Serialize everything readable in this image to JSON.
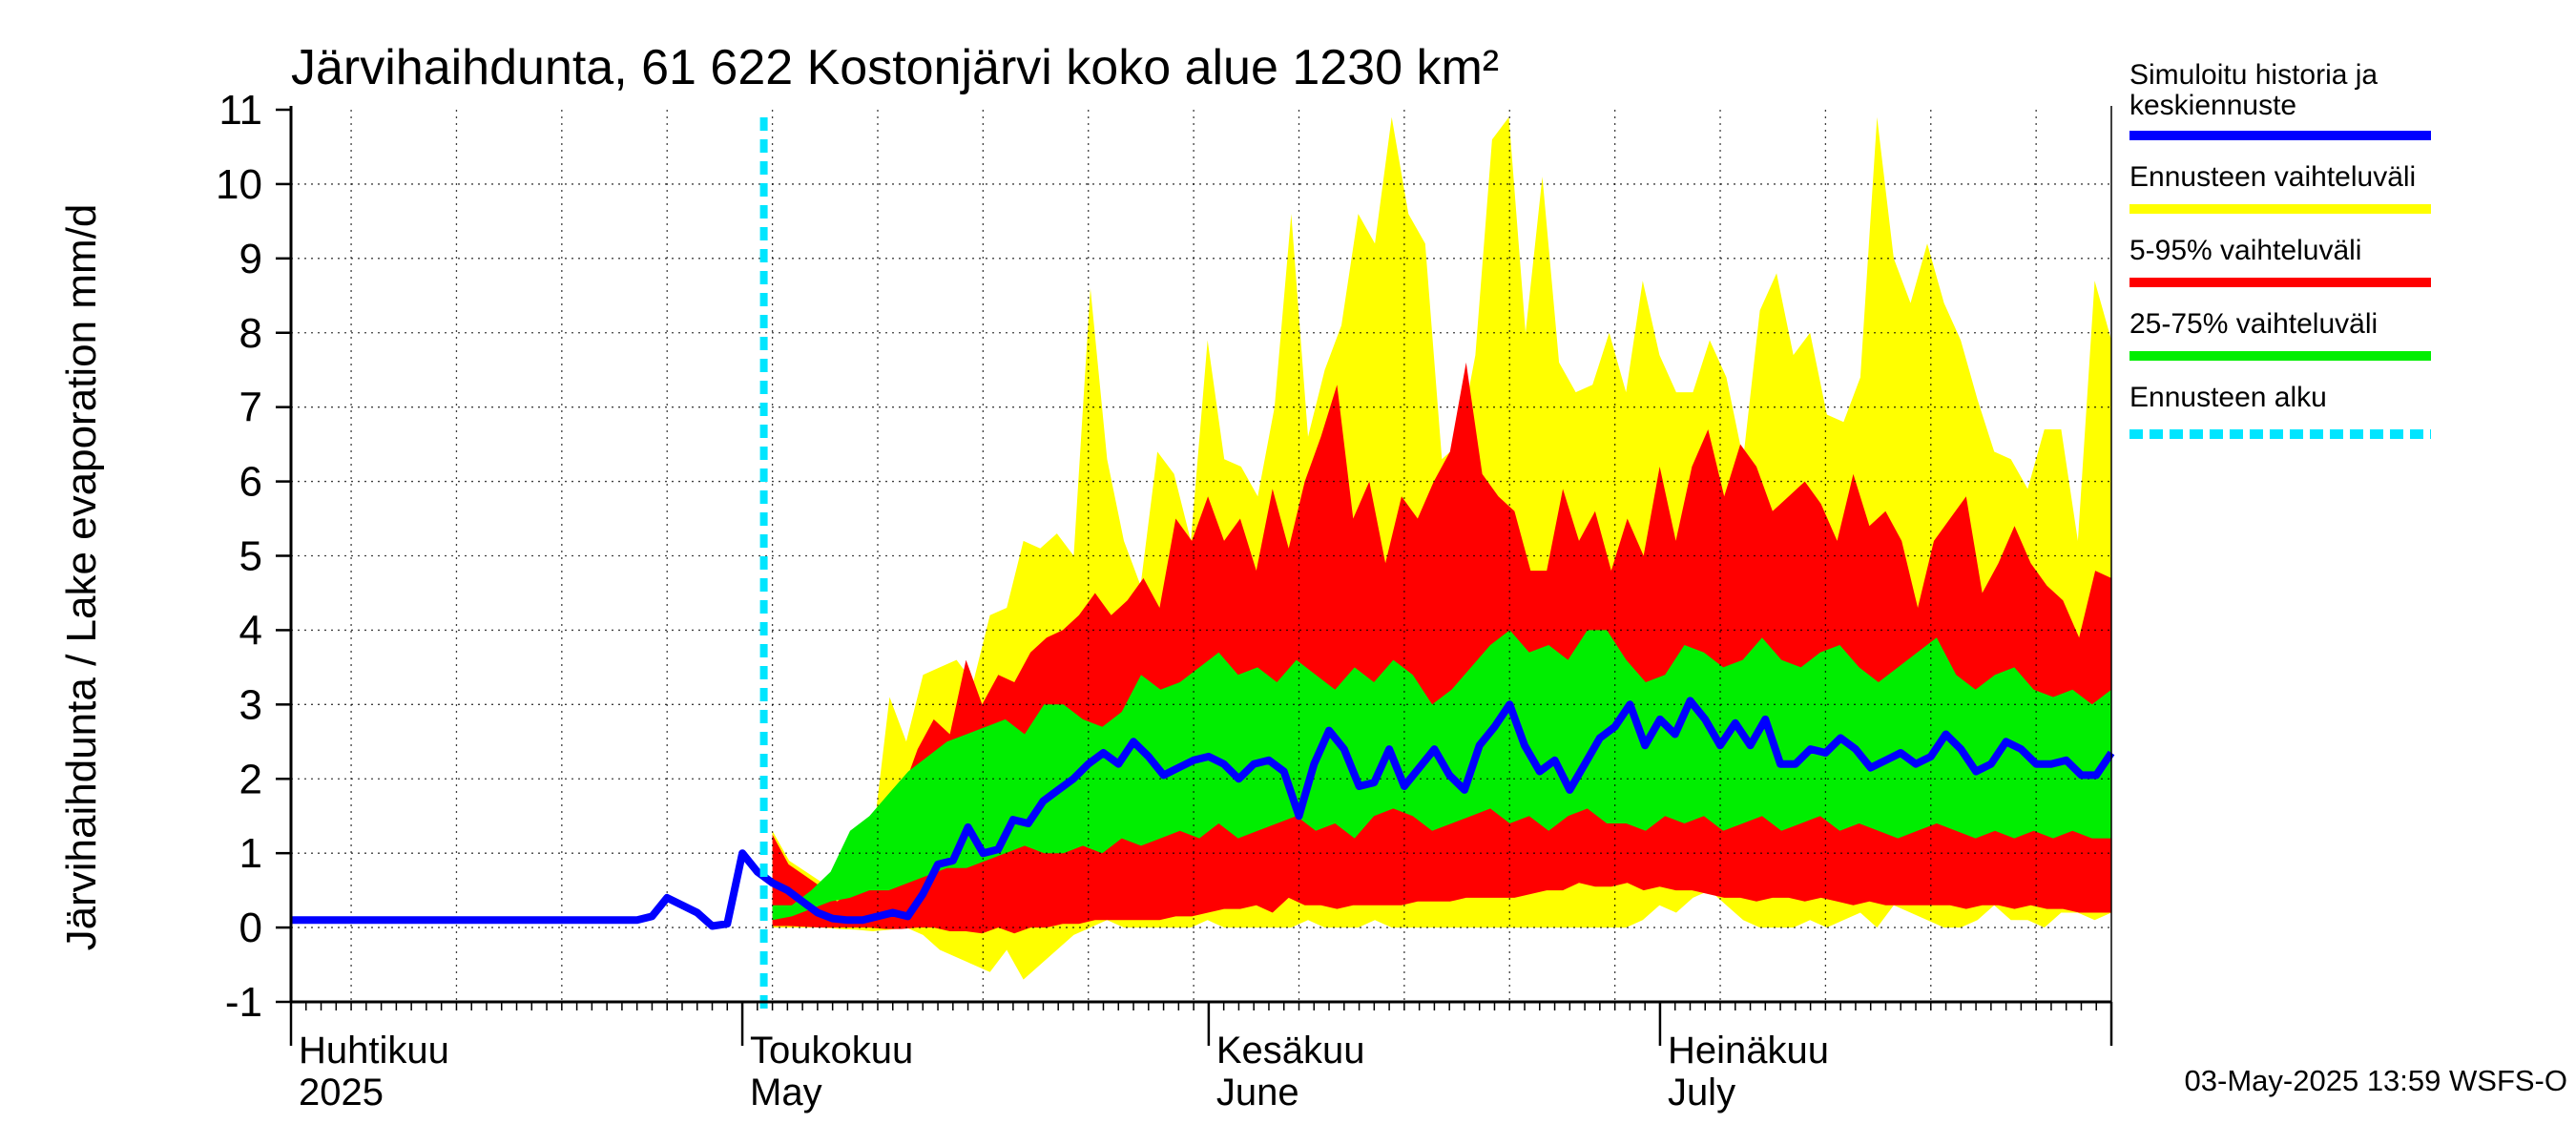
{
  "chart_data": {
    "type": "area",
    "title": "Järvihaihdunta, 61 622 Kostonjärvi koko alue 1230 km²",
    "ylabel": "Järvihaihdunta / Lake evaporation   mm/d",
    "ylim": [
      -1,
      11
    ],
    "yticks": [
      "-1",
      "0",
      "1",
      "2",
      "3",
      "4",
      "5",
      "6",
      "7",
      "8",
      "9",
      "10",
      "11"
    ],
    "x_start": "2025-04-01",
    "x_end": "2025-07-31",
    "month_labels": [
      {
        "fi": "Huhtikuu",
        "en": "2025",
        "date": "2025-04-01"
      },
      {
        "fi": "Toukokuu",
        "en": "May",
        "date": "2025-05-01"
      },
      {
        "fi": "Kesäkuu",
        "en": "June",
        "date": "2025-06-01"
      },
      {
        "fi": "Heinäkuu",
        "en": "July",
        "date": "2025-07-01"
      }
    ],
    "forecast_start": "2025-05-03",
    "grid": true,
    "legend_position": "right",
    "series": [
      {
        "name": "Simuloitu historia ja keskiennuste",
        "color": "#0000ff",
        "values": [
          0.1,
          0.1,
          0.1,
          0.1,
          0.1,
          0.1,
          0.1,
          0.1,
          0.1,
          0.1,
          0.1,
          0.1,
          0.1,
          0.1,
          0.1,
          0.1,
          0.1,
          0.1,
          0.1,
          0.1,
          0.1,
          0.1,
          0.1,
          0.1,
          0.15,
          0.4,
          0.3,
          0.2,
          0.02,
          0.05,
          1.0,
          0.75,
          0.6,
          0.5,
          0.35,
          0.2,
          0.12,
          0.1,
          0.1,
          0.15,
          0.2,
          0.15,
          0.45,
          0.85,
          0.9,
          1.35,
          1.0,
          1.05,
          1.45,
          1.4,
          1.7,
          1.85,
          2.0,
          2.2,
          2.35,
          2.2,
          2.5,
          2.3,
          2.05,
          2.15,
          2.25,
          2.3,
          2.2,
          2.0,
          2.2,
          2.25,
          2.1,
          1.5,
          2.2,
          2.65,
          2.4,
          1.9,
          1.95,
          2.4,
          1.9,
          2.15,
          2.4,
          2.05,
          1.85,
          2.45,
          2.7,
          3.0,
          2.45,
          2.1,
          2.25,
          1.85,
          2.2,
          2.55,
          2.7,
          3.0,
          2.45,
          2.8,
          2.6,
          3.05,
          2.8,
          2.45,
          2.75,
          2.45,
          2.8,
          2.2,
          2.2,
          2.4,
          2.35,
          2.55,
          2.4,
          2.15,
          2.25,
          2.35,
          2.2,
          2.3,
          2.6,
          2.4,
          2.1,
          2.2,
          2.5,
          2.4,
          2.2,
          2.2,
          2.25,
          2.05,
          2.05,
          2.35
        ]
      },
      {
        "name": "Ennusteen vaihteluväli",
        "color": "#ffff00",
        "upper": [
          1.3,
          0.9,
          0.75,
          0.6,
          0.4,
          0.8,
          1.2,
          3.1,
          2.5,
          3.4,
          3.5,
          3.6,
          3.3,
          4.2,
          4.3,
          5.2,
          5.1,
          5.3,
          5.0,
          8.6,
          6.3,
          5.2,
          4.6,
          6.4,
          6.1,
          5.2,
          7.9,
          6.3,
          6.2,
          5.8,
          7.0,
          9.6,
          6.6,
          7.5,
          8.1,
          9.6,
          9.2,
          10.9,
          9.6,
          9.2,
          6.3,
          6.5,
          7.7,
          10.6,
          10.9,
          8.0,
          10.1,
          7.6,
          7.2,
          7.3,
          8.0,
          7.2,
          8.7,
          7.7,
          7.2,
          7.2,
          7.9,
          7.4,
          6.3,
          8.3,
          8.8,
          7.7,
          8.0,
          6.9,
          6.8,
          7.4,
          10.9,
          9.0,
          8.4,
          9.2,
          8.4,
          7.9,
          7.1,
          6.4,
          6.3,
          5.9,
          6.7,
          6.7,
          5.2,
          8.7,
          7.9
        ],
        "lower": [
          0.0,
          0.0,
          0.0,
          0.0,
          -0.02,
          -0.03,
          -0.05,
          -0.03,
          0.0,
          -0.1,
          -0.3,
          -0.4,
          -0.5,
          -0.6,
          -0.3,
          -0.7,
          -0.5,
          -0.3,
          -0.1,
          0.0,
          0.1,
          0.0,
          0.0,
          0.0,
          0.0,
          0.0,
          0.1,
          0.0,
          0.0,
          0.0,
          0.0,
          0.0,
          0.1,
          0.0,
          0.0,
          0.0,
          0.1,
          0.0,
          0.0,
          0.0,
          0.0,
          0.0,
          0.0,
          0.0,
          0.0,
          0.0,
          0.0,
          0.0,
          0.0,
          0.0,
          0.0,
          0.0,
          0.1,
          0.3,
          0.2,
          0.4,
          0.5,
          0.3,
          0.1,
          0.0,
          0.0,
          0.0,
          0.1,
          0.0,
          0.1,
          0.2,
          0.0,
          0.3,
          0.2,
          0.1,
          0.0,
          0.0,
          0.1,
          0.3,
          0.1,
          0.1,
          0.0,
          0.2,
          0.2,
          0.1,
          0.2
        ]
      },
      {
        "name": "5-95% vaihteluväli",
        "color": "#ff0000",
        "upper": [
          1.25,
          0.85,
          0.7,
          0.55,
          0.35,
          0.5,
          0.8,
          0.8,
          1.8,
          2.4,
          2.8,
          2.6,
          3.6,
          3.0,
          3.4,
          3.3,
          3.7,
          3.9,
          4.0,
          4.2,
          4.5,
          4.2,
          4.4,
          4.7,
          4.3,
          5.5,
          5.2,
          5.8,
          5.2,
          5.5,
          4.8,
          5.9,
          5.1,
          6.0,
          6.6,
          7.3,
          5.5,
          6.0,
          4.9,
          5.8,
          5.5,
          6.0,
          6.4,
          7.6,
          6.1,
          5.8,
          5.6,
          4.8,
          4.8,
          5.9,
          5.2,
          5.6,
          4.8,
          5.5,
          5.0,
          6.2,
          5.2,
          6.2,
          6.7,
          5.8,
          6.5,
          6.2,
          5.6,
          5.8,
          6.0,
          5.7,
          5.2,
          6.1,
          5.4,
          5.6,
          5.2,
          4.3,
          5.2,
          5.5,
          5.8,
          4.5,
          4.9,
          5.4,
          4.9,
          4.6,
          4.4,
          3.9,
          4.8,
          4.7
        ],
        "lower": [
          0.02,
          0.02,
          0.01,
          0.0,
          0.0,
          0.0,
          0.0,
          -0.02,
          -0.02,
          0.0,
          0.0,
          -0.05,
          -0.05,
          -0.08,
          0.0,
          -0.08,
          0.0,
          0.0,
          0.05,
          0.05,
          0.1,
          0.1,
          0.1,
          0.1,
          0.1,
          0.15,
          0.15,
          0.2,
          0.25,
          0.25,
          0.3,
          0.2,
          0.4,
          0.3,
          0.3,
          0.25,
          0.3,
          0.3,
          0.3,
          0.3,
          0.35,
          0.35,
          0.35,
          0.4,
          0.4,
          0.4,
          0.4,
          0.45,
          0.5,
          0.5,
          0.6,
          0.55,
          0.55,
          0.6,
          0.5,
          0.55,
          0.5,
          0.5,
          0.45,
          0.4,
          0.4,
          0.35,
          0.4,
          0.4,
          0.35,
          0.4,
          0.35,
          0.3,
          0.35,
          0.3,
          0.3,
          0.3,
          0.3,
          0.3,
          0.25,
          0.3,
          0.3,
          0.25,
          0.3,
          0.25,
          0.25,
          0.2,
          0.2,
          0.2
        ]
      },
      {
        "name": "25-75% vaihteluväli",
        "color": "#00ee00",
        "upper": [
          0.3,
          0.3,
          0.5,
          0.75,
          1.3,
          1.5,
          1.8,
          2.1,
          2.3,
          2.5,
          2.6,
          2.7,
          2.8,
          2.6,
          3.0,
          3.0,
          2.8,
          2.7,
          2.9,
          3.4,
          3.2,
          3.3,
          3.5,
          3.7,
          3.4,
          3.5,
          3.3,
          3.6,
          3.4,
          3.2,
          3.5,
          3.3,
          3.6,
          3.4,
          3.0,
          3.2,
          3.5,
          3.8,
          4.0,
          3.7,
          3.8,
          3.6,
          4.0,
          4.0,
          3.6,
          3.3,
          3.4,
          3.8,
          3.7,
          3.5,
          3.6,
          3.9,
          3.6,
          3.5,
          3.7,
          3.8,
          3.5,
          3.3,
          3.5,
          3.7,
          3.9,
          3.4,
          3.2,
          3.4,
          3.5,
          3.2,
          3.1,
          3.2,
          3.0,
          3.2
        ],
        "lower": [
          0.1,
          0.15,
          0.25,
          0.35,
          0.4,
          0.5,
          0.5,
          0.6,
          0.7,
          0.8,
          0.8,
          0.9,
          1.0,
          1.1,
          1.0,
          1.0,
          1.1,
          1.0,
          1.2,
          1.1,
          1.2,
          1.3,
          1.2,
          1.4,
          1.2,
          1.3,
          1.4,
          1.5,
          1.3,
          1.4,
          1.2,
          1.5,
          1.6,
          1.5,
          1.3,
          1.4,
          1.5,
          1.6,
          1.4,
          1.5,
          1.3,
          1.5,
          1.6,
          1.4,
          1.4,
          1.3,
          1.5,
          1.4,
          1.5,
          1.3,
          1.4,
          1.5,
          1.3,
          1.4,
          1.5,
          1.3,
          1.4,
          1.3,
          1.2,
          1.3,
          1.4,
          1.3,
          1.2,
          1.3,
          1.2,
          1.3,
          1.2,
          1.3,
          1.2,
          1.2
        ]
      },
      {
        "name": "Ennusteen alku",
        "color": "#00e5ff"
      }
    ]
  },
  "legend": [
    {
      "text": "Simuloitu historia ja",
      "text2": "keskiennuste",
      "color": "#0000ff",
      "style": "solid"
    },
    {
      "text": "Ennusteen vaihteluväli",
      "color": "#ffff00",
      "style": "solid"
    },
    {
      "text": "5-95% vaihteluväli",
      "color": "#ff0000",
      "style": "solid"
    },
    {
      "text": "25-75% vaihteluväli",
      "color": "#00ee00",
      "style": "solid"
    },
    {
      "text": "Ennusteen alku",
      "color": "#00e5ff",
      "style": "dashed"
    }
  ],
  "timestamp": "03-May-2025 13:59 WSFS-O"
}
